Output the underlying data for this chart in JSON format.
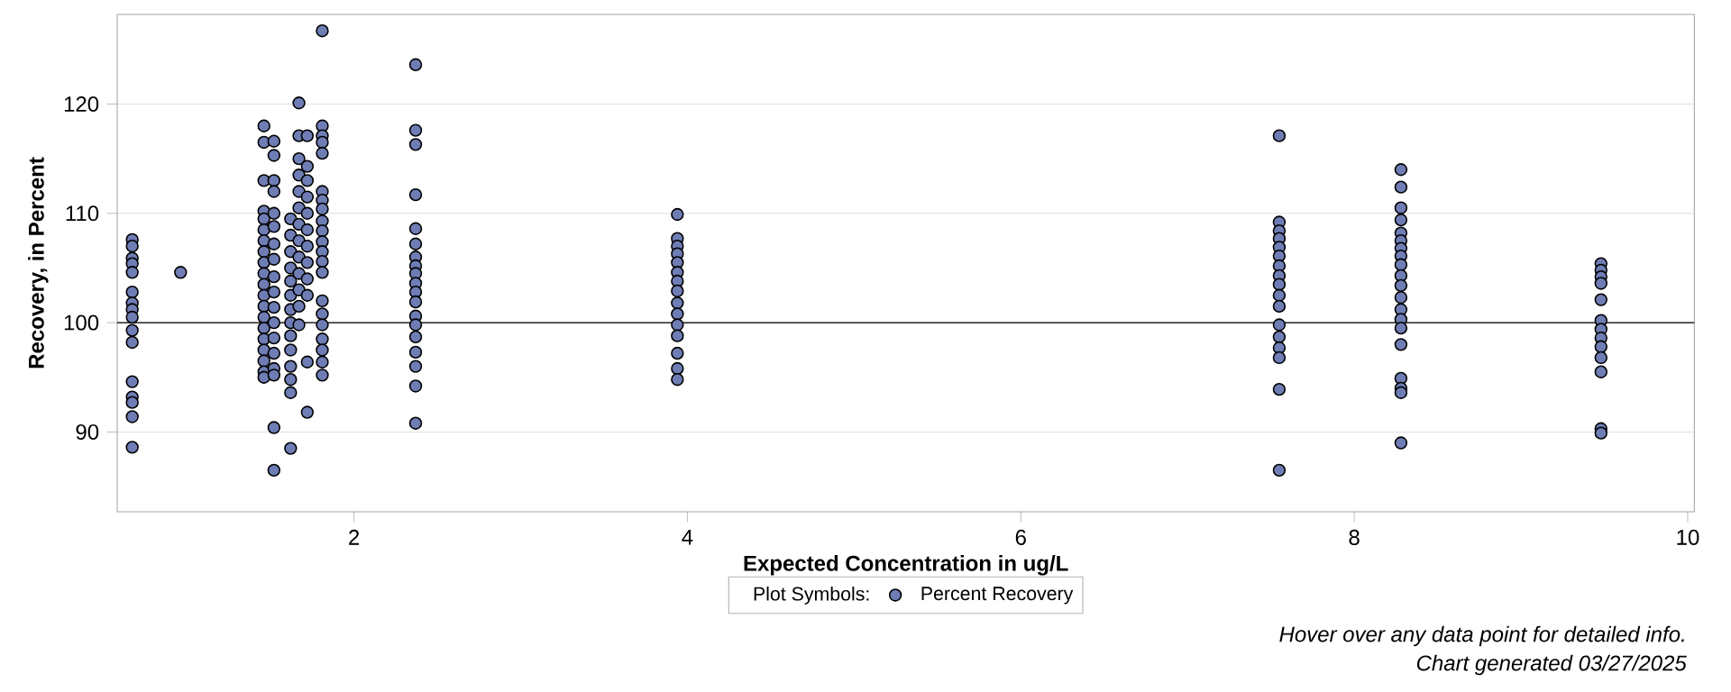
{
  "chart_data": {
    "type": "scatter",
    "xlabel": "Expected Concentration in ug/L",
    "ylabel": "Recovery, in Percent",
    "legend_title": "Plot Symbols:",
    "legend": "bottom",
    "grid": "y",
    "marker": "circle",
    "xlim": [
      0.58,
      10.04
    ],
    "ylim": [
      82.7,
      128.2
    ],
    "xticks": [
      2,
      4,
      6,
      8,
      10
    ],
    "yticks": [
      90,
      100,
      110,
      120
    ],
    "ref_lines": [
      {
        "axis": "y",
        "value": 100,
        "color": "#000000"
      }
    ],
    "annotations": [
      "Hover over any data point for detailed info.",
      "Chart generated 03/27/2025"
    ],
    "series": [
      {
        "name": "Percent Recovery",
        "color": "#6f7db5",
        "x": [
          0.67,
          0.67,
          0.67,
          0.67,
          0.67,
          0.67,
          0.67,
          0.67,
          0.67,
          0.67,
          0.67,
          0.67,
          0.67,
          0.67,
          0.67,
          0.67,
          0.96,
          1.46,
          1.46,
          1.46,
          1.46,
          1.46,
          1.46,
          1.46,
          1.46,
          1.46,
          1.46,
          1.46,
          1.46,
          1.46,
          1.46,
          1.46,
          1.46,
          1.46,
          1.46,
          1.46,
          1.46,
          1.52,
          1.52,
          1.52,
          1.52,
          1.52,
          1.52,
          1.52,
          1.52,
          1.52,
          1.52,
          1.52,
          1.52,
          1.52,
          1.52,
          1.52,
          1.52,
          1.52,
          1.52,
          1.62,
          1.62,
          1.62,
          1.62,
          1.62,
          1.62,
          1.62,
          1.62,
          1.62,
          1.62,
          1.62,
          1.62,
          1.62,
          1.62,
          1.67,
          1.67,
          1.67,
          1.67,
          1.67,
          1.67,
          1.67,
          1.67,
          1.67,
          1.67,
          1.67,
          1.67,
          1.67,
          1.72,
          1.72,
          1.72,
          1.72,
          1.72,
          1.72,
          1.72,
          1.72,
          1.72,
          1.72,
          1.72,
          1.72,
          1.81,
          1.81,
          1.81,
          1.81,
          1.81,
          1.81,
          1.81,
          1.81,
          1.81,
          1.81,
          1.81,
          1.81,
          1.81,
          1.81,
          1.81,
          1.81,
          1.81,
          1.81,
          1.81,
          1.81,
          1.81,
          2.37,
          2.37,
          2.37,
          2.37,
          2.37,
          2.37,
          2.37,
          2.37,
          2.37,
          2.37,
          2.37,
          2.37,
          2.37,
          2.37,
          2.37,
          2.37,
          2.37,
          2.37,
          2.37,
          3.94,
          3.94,
          3.94,
          3.94,
          3.94,
          3.94,
          3.94,
          3.94,
          3.94,
          3.94,
          3.94,
          3.94,
          3.94,
          3.94,
          3.94,
          7.55,
          7.55,
          7.55,
          7.55,
          7.55,
          7.55,
          7.55,
          7.55,
          7.55,
          7.55,
          7.55,
          7.55,
          7.55,
          7.55,
          7.55,
          7.55,
          7.55,
          8.28,
          8.28,
          8.28,
          8.28,
          8.28,
          8.28,
          8.28,
          8.28,
          8.28,
          8.28,
          8.28,
          8.28,
          8.28,
          8.28,
          8.28,
          8.28,
          8.28,
          8.28,
          8.28,
          8.28,
          9.48,
          9.48,
          9.48,
          9.48,
          9.48,
          9.48,
          9.48,
          9.48,
          9.48,
          9.48,
          9.48,
          9.48,
          9.48
        ],
        "values": [
          107.6,
          107,
          105.9,
          105.4,
          104.6,
          102.8,
          101.8,
          101.2,
          100.5,
          99.3,
          98.2,
          94.6,
          93.2,
          92.7,
          91.4,
          88.6,
          104.6,
          118,
          116.5,
          113,
          110.2,
          109.5,
          108.5,
          107.5,
          106.5,
          105.5,
          104.5,
          103.5,
          102.5,
          101.5,
          100.5,
          99.5,
          98.5,
          97.5,
          96.5,
          95.5,
          95,
          116.6,
          115.3,
          113,
          112,
          110,
          108.8,
          107.2,
          105.8,
          104.2,
          102.8,
          101.4,
          100,
          98.6,
          97.2,
          95.8,
          95.2,
          90.4,
          86.5,
          109.5,
          108,
          106.5,
          105,
          103.8,
          102.5,
          101.2,
          100,
          98.8,
          97.5,
          96,
          94.8,
          93.6,
          88.5,
          120.1,
          117.1,
          115,
          113.5,
          112,
          110.5,
          109,
          107.5,
          106,
          104.5,
          103,
          101.5,
          99.8,
          117.1,
          114.3,
          113,
          111.5,
          110,
          108.5,
          107,
          105.5,
          104,
          102.5,
          96.4,
          91.8,
          126.7,
          118,
          117.1,
          116.5,
          115.5,
          112,
          111.2,
          110.4,
          109.3,
          108.4,
          107.4,
          106.5,
          105.6,
          104.6,
          102,
          100.8,
          99.8,
          98.5,
          97.5,
          96.4,
          95.2,
          123.6,
          117.6,
          116.3,
          111.7,
          108.6,
          107.2,
          106,
          105.2,
          104.5,
          103.6,
          102.8,
          101.9,
          100.6,
          99.8,
          98.7,
          97.3,
          96,
          94.2,
          90.8,
          109.9,
          107.7,
          107,
          106.3,
          105.5,
          104.6,
          103.8,
          102.9,
          101.8,
          100.8,
          99.8,
          98.8,
          97.2,
          95.8,
          94.8,
          117.1,
          109.2,
          108.4,
          107.7,
          106.9,
          106.1,
          105.2,
          104.3,
          103.5,
          102.5,
          101.5,
          99.8,
          98.7,
          97.7,
          96.8,
          93.9,
          86.5,
          114,
          112.4,
          110.5,
          109.4,
          108.2,
          107.5,
          106.8,
          106.1,
          105.3,
          104.3,
          103.4,
          102.3,
          101.2,
          100.3,
          99.5,
          98,
          94.9,
          94,
          93.6,
          89,
          105.4,
          104.8,
          104.2,
          103.6,
          102.1,
          100.2,
          99.4,
          98.6,
          97.8,
          96.8,
          95.5,
          90.3,
          89.9
        ]
      }
    ]
  }
}
